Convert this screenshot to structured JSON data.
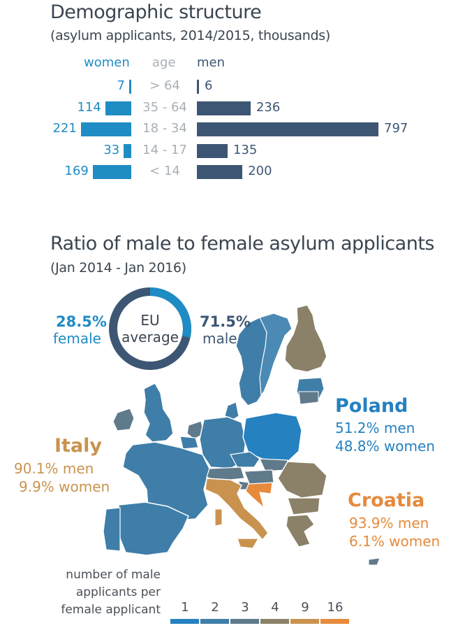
{
  "pyramid": {
    "title": "Demographic structure",
    "subtitle": "(asylum applicants, 2014/2015, thousands)",
    "header_women": "women",
    "header_age": "age",
    "header_men": "men"
  },
  "ratio": {
    "title": "Ratio of male to female asylum applicants",
    "subtitle": "(Jan 2014 - Jan 2016)",
    "eu_label_1": "EU",
    "eu_label_2": "average",
    "female_pct": "28.5%",
    "female_label": "female",
    "male_pct": "71.5%",
    "male_label": "male",
    "poland": {
      "name": "Poland",
      "men": "51.2% men",
      "women": "48.8% women"
    },
    "italy": {
      "name": "Italy",
      "men": "90.1% men",
      "women": "9.9% women"
    },
    "croatia": {
      "name": "Croatia",
      "men": "93.9% men",
      "women": "6.1% women"
    },
    "legend_title_1": "number of male",
    "legend_title_2": "applicants per",
    "legend_title_3": "female applicant"
  },
  "colors": {
    "women": "#1f8cc4",
    "men": "#3d5673",
    "age": "#a8b0b6",
    "poland": "#2581c0",
    "italy": "#c9934f",
    "croatia": "#e68a3c"
  },
  "chart_data": [
    {
      "type": "bar",
      "title": "Demographic structure",
      "subtitle": "(asylum applicants, 2014/2015, thousands)",
      "categories": [
        "> 64",
        "35 - 64",
        "18 - 34",
        "14 - 17",
        "< 14"
      ],
      "series": [
        {
          "name": "women",
          "values": [
            7,
            114,
            221,
            33,
            169
          ]
        },
        {
          "name": "men",
          "values": [
            6,
            236,
            797,
            135,
            200
          ]
        }
      ]
    },
    {
      "type": "pie",
      "title": "",
      "labels": [
        "female",
        "male"
      ],
      "values": [
        28.5,
        71.5
      ]
    }
  ],
  "legend": {
    "values": [
      "1",
      "2",
      "3",
      "4",
      "9",
      "16"
    ],
    "colors": [
      "#2581c0",
      "#3f7ea8",
      "#5f7a8a",
      "#8a8168",
      "#c9934f",
      "#e68a3c"
    ]
  }
}
